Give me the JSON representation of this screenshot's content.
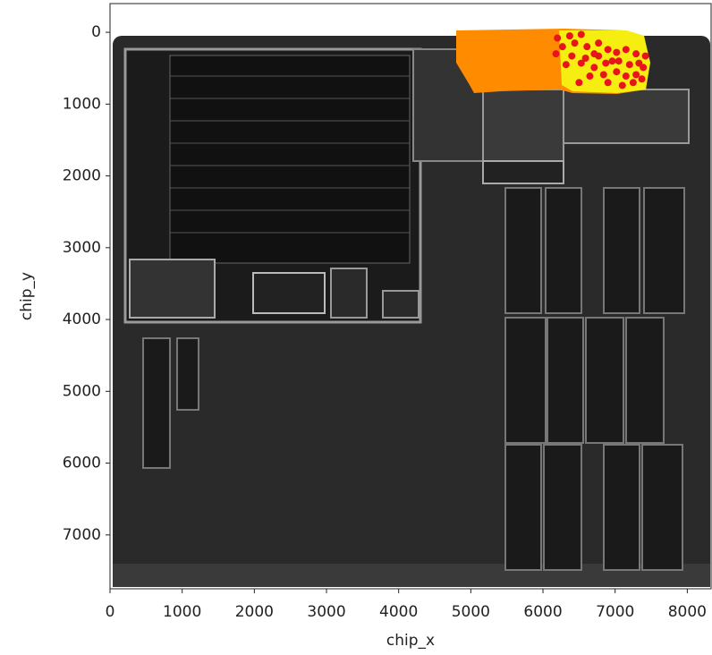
{
  "chart_data": {
    "type": "scatter",
    "xlabel": "chip_x",
    "ylabel": "chip_y",
    "xlim": [
      0,
      8330
    ],
    "ylim": [
      7750,
      -400
    ],
    "xticks": [
      0,
      1000,
      2000,
      3000,
      4000,
      5000,
      6000,
      7000,
      8000
    ],
    "yticks": [
      0,
      1000,
      2000,
      3000,
      4000,
      5000,
      6000,
      7000
    ],
    "series": [
      {
        "color": "#e8141c",
        "x": [
          6200,
          6370,
          6530,
          6270,
          6440,
          6610,
          6770,
          6180,
          6400,
          6710,
          6900,
          7020,
          7150,
          7290,
          6320,
          6530,
          6710,
          6870,
          7050,
          7200,
          7330,
          6650,
          6840,
          7020,
          7150,
          7290,
          7370,
          6500,
          6900,
          7100,
          7250,
          7390,
          7420,
          6960,
          6770,
          6590
        ],
        "y": [
          80,
          50,
          30,
          200,
          150,
          200,
          150,
          300,
          330,
          300,
          240,
          280,
          240,
          300,
          450,
          430,
          490,
          430,
          400,
          450,
          430,
          610,
          590,
          550,
          610,
          590,
          650,
          700,
          700,
          740,
          700,
          490,
          330,
          400,
          330,
          360
        ]
      }
    ]
  }
}
